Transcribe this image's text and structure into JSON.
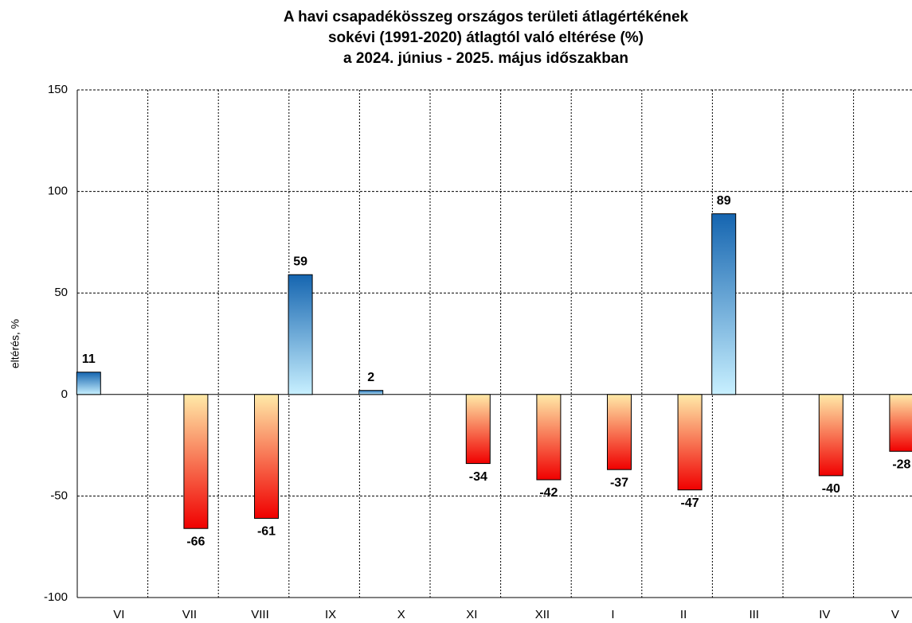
{
  "chart_data": {
    "type": "bar",
    "title": [
      "A havi csapadékösszeg országos területi átlagértékének",
      "sokévi (1991-2020) átlagtól való eltérése (%)",
      "a 2024. június - 2025. május időszakban"
    ],
    "y_label": "eltérés, %",
    "categories": [
      "VI",
      "VII",
      "VIII",
      "IX",
      "X",
      "XI",
      "XII",
      "I",
      "II",
      "III",
      "IV",
      "V"
    ],
    "values": [
      11,
      -66,
      -61,
      59,
      2,
      -34,
      -42,
      -37,
      -47,
      89,
      -40,
      -28
    ],
    "ylim": [
      -100,
      150
    ],
    "yticks": [
      -100,
      -50,
      0,
      50,
      100,
      150
    ],
    "grid": true
  }
}
